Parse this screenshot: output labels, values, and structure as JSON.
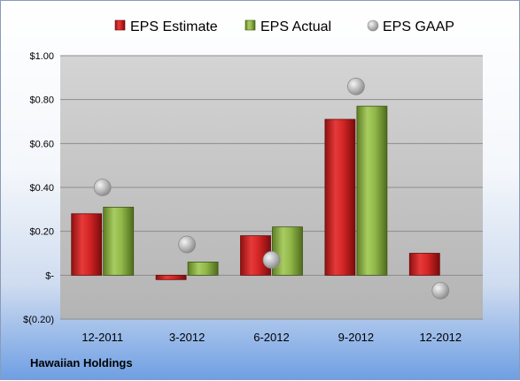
{
  "company": "Hawaiian Holdings",
  "colors": {
    "estimate": "#cc1f1f",
    "actual": "#8fb34a",
    "gaap": "#b7b7b7"
  },
  "chart_data": {
    "type": "bar",
    "categories": [
      "12-2011",
      "3-2012",
      "6-2012",
      "9-2012",
      "12-2012"
    ],
    "series": [
      {
        "name": "EPS Estimate",
        "kind": "bar",
        "values": [
          0.28,
          -0.02,
          0.18,
          0.71,
          0.1
        ]
      },
      {
        "name": "EPS Actual",
        "kind": "bar",
        "values": [
          0.31,
          0.06,
          0.22,
          0.77,
          null
        ]
      },
      {
        "name": "EPS GAAP",
        "kind": "marker",
        "values": [
          0.4,
          0.14,
          0.07,
          0.86,
          -0.07
        ]
      }
    ],
    "yticks": [
      {
        "value": 1.0,
        "label": "$1.00"
      },
      {
        "value": 0.8,
        "label": "$0.80"
      },
      {
        "value": 0.6,
        "label": "$0.60"
      },
      {
        "value": 0.4,
        "label": "$0.40"
      },
      {
        "value": 0.2,
        "label": "$0.20"
      },
      {
        "value": 0.0,
        "label": "$-"
      },
      {
        "value": -0.2,
        "label": "$(0.20)"
      }
    ],
    "ylim": [
      -0.2,
      1.0
    ],
    "grid": true,
    "legend_position": "top"
  }
}
